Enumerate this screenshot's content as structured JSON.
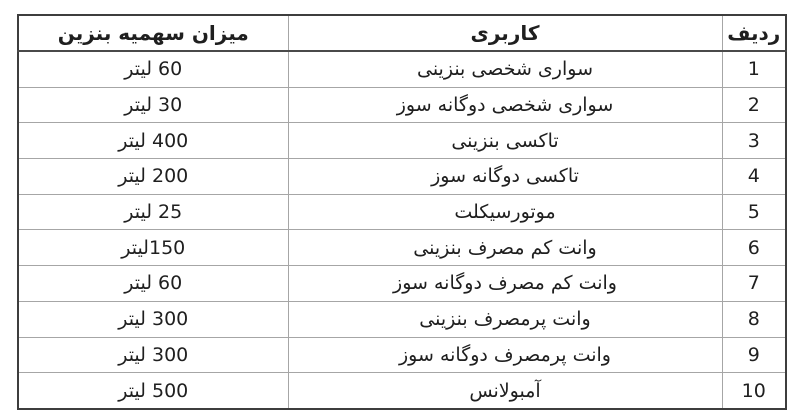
{
  "table": {
    "headers": {
      "row": "ردیف",
      "usage": "کاربری",
      "quota": "میزان سهمیه بنزین"
    },
    "unit_word": "لیتر",
    "rows": [
      {
        "row": "1",
        "usage": "سواری شخصی بنزینی",
        "quota": "60 لیتر"
      },
      {
        "row": "2",
        "usage": "سواری شخصی دوگانه سوز",
        "quota": "30 لیتر"
      },
      {
        "row": "3",
        "usage": "تاکسی بنزینی",
        "quota": "400 لیتر"
      },
      {
        "row": "4",
        "usage": "تاکسی دوگانه سوز",
        "quota": "200 لیتر"
      },
      {
        "row": "5",
        "usage": "موتورسیکلت",
        "quota": "25 لیتر"
      },
      {
        "row": "6",
        "usage": "وانت کم مصرف بنزینی",
        "quota": "150لیتر"
      },
      {
        "row": "7",
        "usage": "وانت کم مصرف دوگانه سوز",
        "quota": "60 لیتر"
      },
      {
        "row": "8",
        "usage": "وانت پرمصرف بنزینی",
        "quota": "300 لیتر"
      },
      {
        "row": "9",
        "usage": "وانت پرمصرف دوگانه سوز",
        "quota": "300 لیتر"
      },
      {
        "row": "10",
        "usage": "آمبولانس",
        "quota": "500 لیتر"
      }
    ]
  },
  "colors": {
    "outer_border": "#3d3d3d",
    "inner_border": "#a6a6a6",
    "header_underline": "#4a4a4a",
    "text": "#1f1f1f",
    "background": "#ffffff"
  }
}
